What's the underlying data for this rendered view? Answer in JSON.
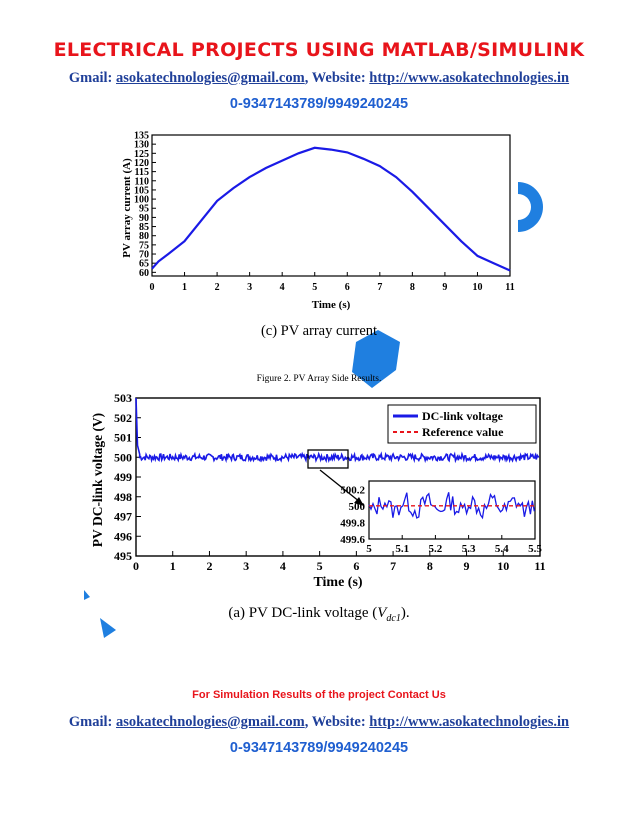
{
  "header": {
    "title": "ELECTRICAL PROJECTS USING MATLAB/SIMULINK",
    "gmail_label": "Gmail: ",
    "gmail": "asokatechnologies@gmail.com",
    "website_label": ", Website: ",
    "website": "http://www.asokatechnologies.in",
    "phone": "0-9347143789/9949240245"
  },
  "figure_c": {
    "caption": "(c) PV array current"
  },
  "figure_caption": "Figure 2. PV Array Side Results.",
  "figure_a": {
    "caption_prefix": "(a) PV DC-link voltage (",
    "caption_var": "V",
    "caption_sub": "dc1",
    "caption_suffix": ")."
  },
  "footer": {
    "note": "For Simulation Results of the project Contact Us",
    "gmail_label": "Gmail: ",
    "gmail": "asokatechnologies@gmail.com",
    "website_label": ", Website: ",
    "website": "http://www.asokatechnologies.in",
    "phone": "0-9347143789/9949240245"
  },
  "colors": {
    "title": "#e8141b",
    "link": "#1f3f99",
    "phone": "#1f5fd0",
    "series": "#1a1ae6",
    "reference": "#e8141b",
    "watermark": "#1f7fe0"
  },
  "chart_data": [
    {
      "type": "line",
      "xlabel": "Time (s)",
      "ylabel": "PV array current (A)",
      "xlim": [
        0,
        11
      ],
      "ylim": [
        58,
        135
      ],
      "xticks": [
        "0",
        "1",
        "2",
        "3",
        "4",
        "5",
        "6",
        "7",
        "8",
        "9",
        "10",
        "11"
      ],
      "yticks": [
        "60",
        "65",
        "70",
        "75",
        "80",
        "85",
        "90",
        "95",
        "100",
        "105",
        "110",
        "115",
        "120",
        "125",
        "130",
        "135"
      ],
      "x": [
        0,
        0.2,
        0.5,
        1,
        1.5,
        2,
        2.5,
        3,
        3.5,
        4,
        4.5,
        5,
        5.5,
        6,
        6.5,
        7,
        7.5,
        8,
        8.5,
        9,
        9.5,
        10,
        10.5,
        11
      ],
      "series": [
        {
          "values": [
            62,
            66,
            70,
            77,
            88,
            99,
            106,
            112,
            117,
            121,
            125,
            128,
            127,
            125.5,
            122,
            118,
            112,
            104,
            95,
            86,
            77,
            69,
            65,
            61
          ]
        }
      ]
    },
    {
      "type": "line",
      "xlabel": "Time (s)",
      "ylabel": "PV DC-link voltage (V)",
      "xlim": [
        0,
        11
      ],
      "ylim": [
        495,
        503
      ],
      "xticks": [
        "0",
        "1",
        "2",
        "3",
        "4",
        "5",
        "6",
        "7",
        "8",
        "9",
        "10",
        "11"
      ],
      "yticks": [
        "495",
        "496",
        "497",
        "498",
        "499",
        "500",
        "501",
        "502",
        "503"
      ],
      "legend": "top-right",
      "series": [
        {
          "name": "DC-link voltage",
          "note": "starts near 503 at t=0, drops to about 500 and stays near 500 with small ripple"
        },
        {
          "name": "Reference value",
          "constant": 500
        }
      ],
      "inset": {
        "xlim": [
          5,
          5.5
        ],
        "ylim": [
          499.6,
          500.3
        ],
        "xticks": [
          "5",
          "5.1",
          "5.2",
          "5.3",
          "5.4",
          "5.5"
        ],
        "yticks": [
          "500.2",
          "500",
          "499.8",
          "499.6"
        ]
      }
    }
  ]
}
